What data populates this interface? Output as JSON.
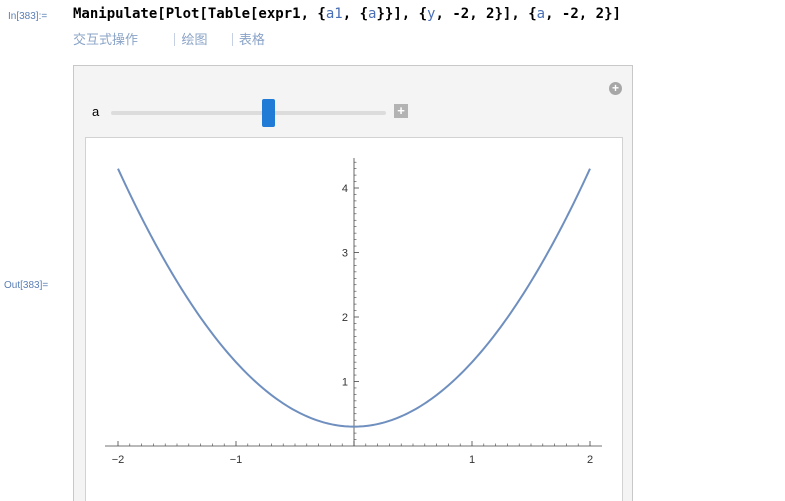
{
  "cell": {
    "in_label": "In[383]:=",
    "out_label": "Out[383]=",
    "code": {
      "func": "Manipulate[Plot[Table[expr1, {",
      "a1": "a1",
      "mid1": ", {",
      "a_inner": "a",
      "mid2": "}}], {",
      "y": "y",
      "mid3": ", -2, 2}], {",
      "a_outer": "a",
      "end": ", -2, 2}]"
    },
    "suggestions": [
      "交互式操作",
      "绘图",
      "表格"
    ]
  },
  "manipulate": {
    "control_label": "a",
    "slider_value": 0.3,
    "slider_min": -2,
    "slider_max": 2
  },
  "colors": {
    "curve": "#6f8fbf",
    "slider_thumb": "#1f7bd6",
    "label_blue": "#5a7fb5"
  },
  "chart_data": {
    "type": "line",
    "function": "y^2 + a",
    "a": 0.3,
    "xlim": [
      -2,
      2
    ],
    "ylim": [
      0,
      4.5
    ],
    "x_ticks": [
      {
        "v": -2,
        "label": "−2"
      },
      {
        "v": -1,
        "label": "−1"
      },
      {
        "v": 0,
        "label": ""
      },
      {
        "v": 1,
        "label": "1"
      },
      {
        "v": 2,
        "label": "2"
      }
    ],
    "y_ticks": [
      {
        "v": 1,
        "label": "1"
      },
      {
        "v": 2,
        "label": "2"
      },
      {
        "v": 3,
        "label": "3"
      },
      {
        "v": 4,
        "label": "4"
      }
    ],
    "series": [
      {
        "x": [
          -2,
          -1.5,
          -1,
          -0.5,
          0,
          0.5,
          1,
          1.5,
          2
        ],
        "y": [
          4.3,
          2.55,
          1.3,
          0.55,
          0.3,
          0.55,
          1.3,
          2.55,
          4.3
        ]
      }
    ]
  }
}
